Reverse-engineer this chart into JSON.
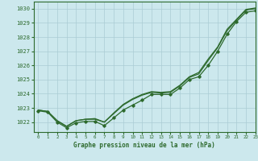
{
  "title": "Graphe pression niveau de la mer (hPa)",
  "bg_color": "#cce8ed",
  "grid_color": "#aaccd4",
  "line_color": "#2d6a2d",
  "marker_color": "#2d6a2d",
  "xlim": [
    -0.5,
    23
  ],
  "ylim": [
    1021.3,
    1030.5
  ],
  "yticks": [
    1022,
    1023,
    1024,
    1025,
    1026,
    1027,
    1028,
    1029,
    1030
  ],
  "xticks": [
    0,
    1,
    2,
    3,
    4,
    5,
    6,
    7,
    8,
    9,
    10,
    11,
    12,
    13,
    14,
    15,
    16,
    17,
    18,
    19,
    20,
    21,
    22,
    23
  ],
  "series": [
    {
      "y": [
        1022.8,
        1022.7,
        1022.0,
        1021.6,
        1021.95,
        1022.05,
        1022.05,
        1021.75,
        1022.3,
        1022.85,
        1023.2,
        1023.55,
        1023.95,
        1023.95,
        1023.95,
        1024.4,
        1025.0,
        1025.2,
        1026.0,
        1027.0,
        1028.2,
        1029.1,
        1029.75,
        1029.85
      ],
      "marker": true,
      "linewidth": 0.9
    },
    {
      "y": [
        1022.85,
        1022.75,
        1022.1,
        1021.7,
        1022.1,
        1022.2,
        1022.2,
        1022.0,
        1022.6,
        1023.2,
        1023.6,
        1023.9,
        1024.1,
        1024.05,
        1024.1,
        1024.55,
        1025.15,
        1025.4,
        1026.35,
        1027.25,
        1028.45,
        1029.2,
        1029.9,
        1030.0
      ],
      "marker": false,
      "linewidth": 0.9
    },
    {
      "y": [
        1022.85,
        1022.75,
        1022.1,
        1021.7,
        1022.1,
        1022.2,
        1022.25,
        1022.0,
        1022.65,
        1023.25,
        1023.65,
        1023.95,
        1024.15,
        1024.1,
        1024.15,
        1024.6,
        1025.2,
        1025.5,
        1026.45,
        1027.3,
        1028.55,
        1029.25,
        1029.95,
        1030.05
      ],
      "marker": false,
      "linewidth": 0.9
    }
  ]
}
